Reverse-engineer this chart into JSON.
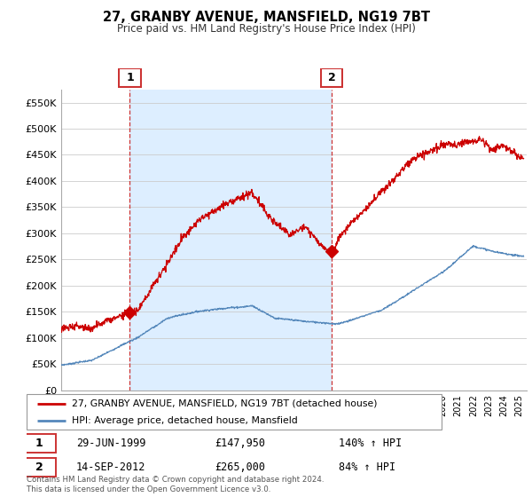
{
  "title": "27, GRANBY AVENUE, MANSFIELD, NG19 7BT",
  "subtitle": "Price paid vs. HM Land Registry's House Price Index (HPI)",
  "legend_line1": "27, GRANBY AVENUE, MANSFIELD, NG19 7BT (detached house)",
  "legend_line2": "HPI: Average price, detached house, Mansfield",
  "annotation1_label": "1",
  "annotation1_date": "29-JUN-1999",
  "annotation1_price": "£147,950",
  "annotation1_hpi": "140% ↑ HPI",
  "annotation2_label": "2",
  "annotation2_date": "14-SEP-2012",
  "annotation2_price": "£265,000",
  "annotation2_hpi": "84% ↑ HPI",
  "footer": "Contains HM Land Registry data © Crown copyright and database right 2024.\nThis data is licensed under the Open Government Licence v3.0.",
  "red_color": "#cc0000",
  "blue_color": "#5588bb",
  "shade_color": "#ddeeff",
  "annotation_vline_color": "#cc3333",
  "ylim": [
    0,
    575000
  ],
  "yticks": [
    0,
    50000,
    100000,
    150000,
    200000,
    250000,
    300000,
    350000,
    400000,
    450000,
    500000,
    550000
  ],
  "ytick_labels": [
    "£0",
    "£50K",
    "£100K",
    "£150K",
    "£200K",
    "£250K",
    "£300K",
    "£350K",
    "£400K",
    "£450K",
    "£500K",
    "£550K"
  ],
  "xlim": [
    1995,
    2025.5
  ],
  "purchase1_x": 1999.5,
  "purchase1_y": 147950,
  "purchase2_x": 2012.72,
  "purchase2_y": 265000
}
